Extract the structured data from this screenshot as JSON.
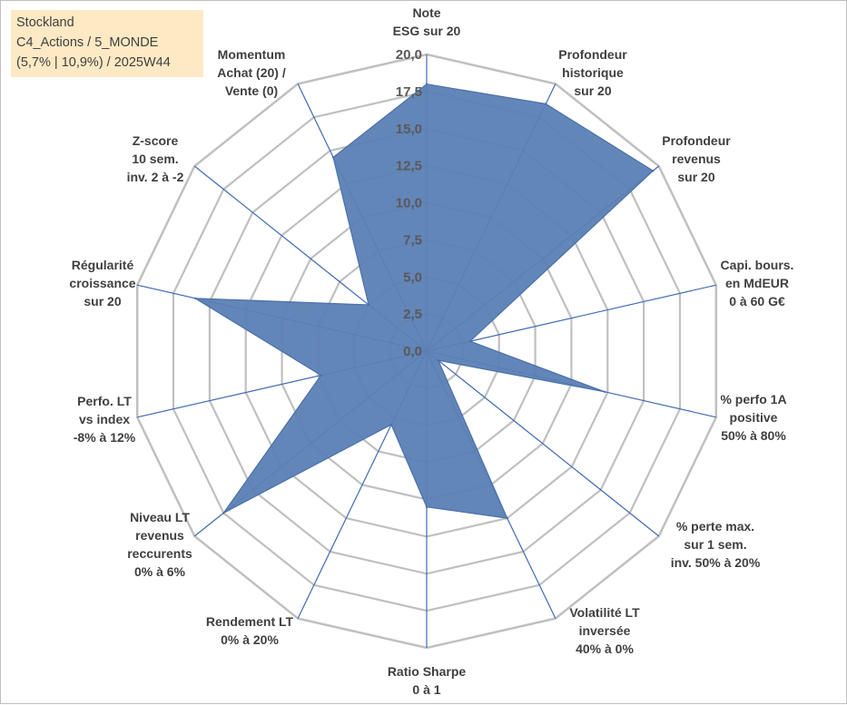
{
  "info": {
    "line1": "Stockland",
    "line2": "C4_Actions / 5_MONDE",
    "line3": "(5,7% | 10,9%) / 2025W44"
  },
  "colors": {
    "fill": "#5b7fb4",
    "stroke": "#4a70ad",
    "grid": "#c0c0c0",
    "spoke": "#3f6bb5",
    "info_bg": "#fde9c4"
  },
  "chart_data": {
    "type": "radar",
    "title": "",
    "rmin": 0,
    "rmax": 20,
    "ticks": [
      "0,0",
      "2,5",
      "5,0",
      "7,5",
      "10,0",
      "12,5",
      "15,0",
      "17,5",
      "20,0"
    ],
    "axes": [
      [
        "Note",
        "ESG sur 20"
      ],
      [
        "Profondeur",
        "historique",
        "sur 20"
      ],
      [
        "Profondeur",
        "revenus",
        "sur 20"
      ],
      [
        "Capi. bours.",
        "en MdEUR",
        "0 à 60 G€"
      ],
      [
        "% perfo 1A",
        "positive",
        "50% à 80%"
      ],
      [
        "% perte max.",
        "sur 1 sem.",
        "inv. 50% à 20%"
      ],
      [
        "Volatilité LT",
        "inversée",
        "40% à 0%"
      ],
      [
        "Ratio Sharpe",
        "0 à 1"
      ],
      [
        "Rendement LT",
        "0% à 20%"
      ],
      [
        "Niveau LT",
        "revenus",
        "reccurents",
        "0% à 6%"
      ],
      [
        "Perfo. LT",
        "vs index",
        "-8% à 12%"
      ],
      [
        "Régularité",
        "croissance",
        "sur 20"
      ],
      [
        "Z-score",
        "10 sem.",
        "inv. 2 à -2"
      ],
      [
        "Momentum",
        "Achat (20) /",
        "Vente (0)"
      ]
    ],
    "series": [
      {
        "values": [
          18,
          18.5,
          19.5,
          3,
          12.3,
          1,
          12.5,
          10.5,
          5.5,
          17.5,
          7.3,
          16,
          5,
          14.5
        ]
      }
    ]
  }
}
